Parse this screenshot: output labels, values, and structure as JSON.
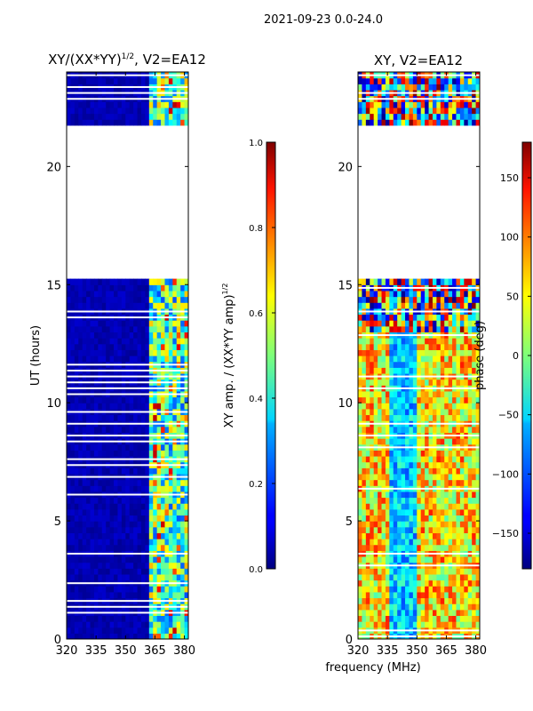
{
  "figure": {
    "suptitle": "2021-09-23 0.0-24.0",
    "shared_xlabel": "frequency (MHz)"
  },
  "chart_data": [
    {
      "type": "heatmap",
      "title_main": "XY/(XX*YY)",
      "title_exp": "1/2",
      "title_suffix": ", V2=EA12",
      "ylabel": "UT (hours)",
      "xlim": [
        320,
        382
      ],
      "ylim": [
        0,
        24
      ],
      "x_ticks": [
        320,
        335,
        350,
        365,
        380
      ],
      "y_ticks": [
        0,
        5,
        10,
        15,
        20
      ],
      "empty_hour_range": [
        15.1,
        21.7
      ],
      "colorbar": {
        "label_main": "XY amp. / (XX*YY amp)",
        "label_exp": "1/2",
        "range": [
          0.0,
          1.0
        ],
        "ticks": [
          "0.0",
          "0.2",
          "0.4",
          "0.6",
          "0.8",
          "1.0"
        ]
      },
      "data_description_colors": {
        "low": "#00008b",
        "mid": "#00bfff",
        "high": "#ffff00",
        "peak": "#ff4500"
      }
    },
    {
      "type": "heatmap",
      "title": "XY, V2=EA12",
      "xlim": [
        320,
        382
      ],
      "ylim": [
        0,
        24
      ],
      "x_ticks": [
        320,
        335,
        350,
        365,
        380
      ],
      "y_ticks": [
        0,
        5,
        10,
        15,
        20
      ],
      "empty_hour_range": [
        15.1,
        21.7
      ],
      "colorbar": {
        "label": "phase (deg)",
        "range": [
          -180,
          180
        ],
        "ticks": [
          "150",
          "100",
          "50",
          "0",
          "−50",
          "−100",
          "−150"
        ]
      }
    }
  ]
}
